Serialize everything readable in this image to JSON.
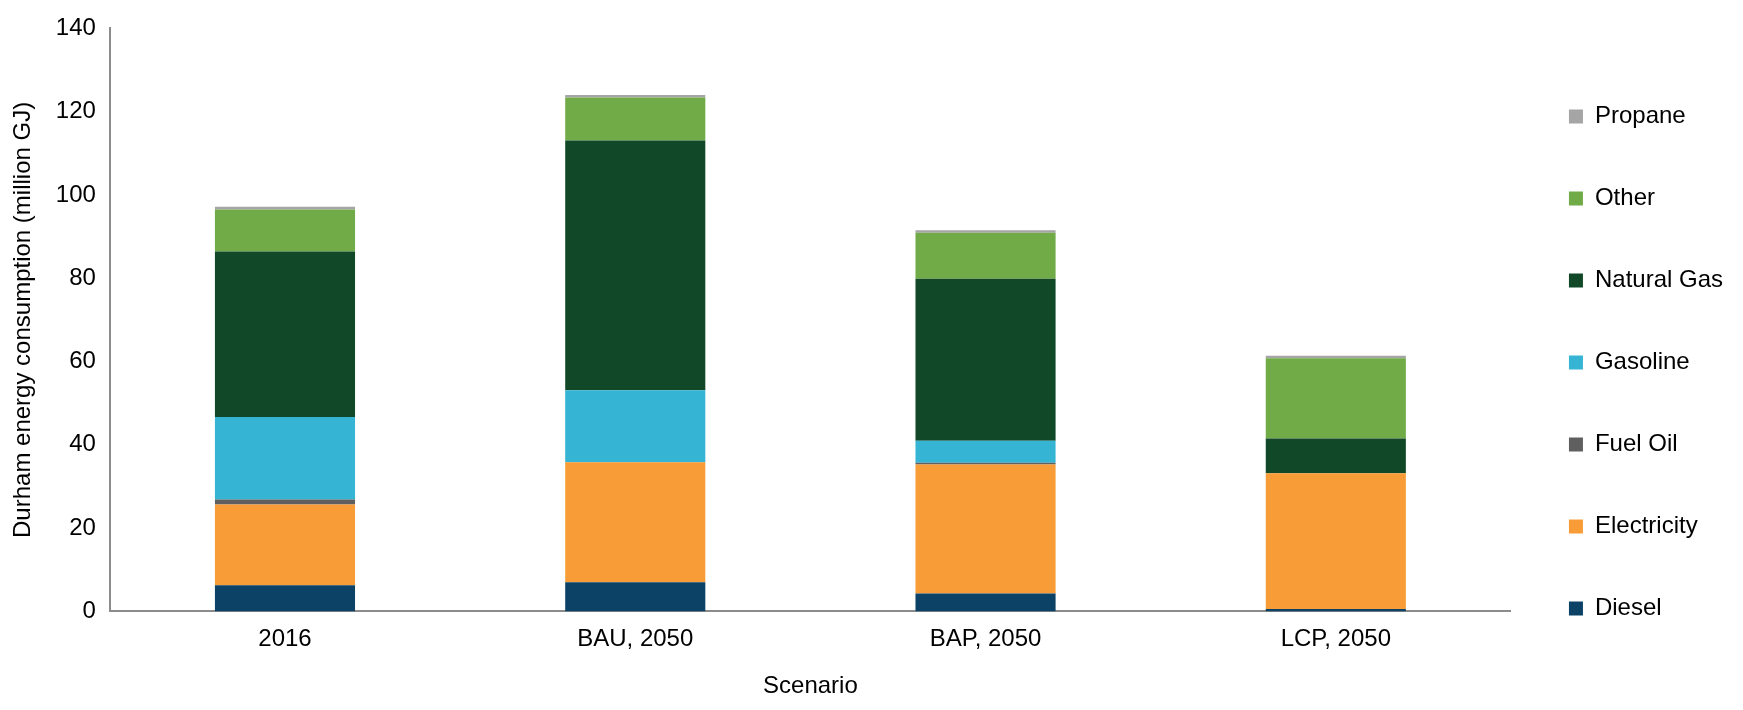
{
  "chart_data": {
    "type": "bar",
    "stacked": true,
    "xlabel": "Scenario",
    "ylabel": "Durham energy consumption (million GJ)",
    "categories": [
      "2016",
      "BAU, 2050",
      "BAP, 2050",
      "LCP, 2050"
    ],
    "series": [
      {
        "name": "Diesel",
        "color": "#0b4266",
        "values": [
          6.3,
          7.0,
          4.3,
          0.6
        ]
      },
      {
        "name": "Electricity",
        "color": "#f79c36",
        "values": [
          19.4,
          28.8,
          31.0,
          32.6
        ]
      },
      {
        "name": "Fuel Oil",
        "color": "#5f5f5f",
        "values": [
          1.2,
          0,
          0.4,
          0
        ]
      },
      {
        "name": "Gasoline",
        "color": "#35b4d4",
        "values": [
          19.8,
          17.3,
          5.3,
          0
        ]
      },
      {
        "name": "Natural Gas",
        "color": "#114928",
        "values": [
          39.7,
          60.0,
          38.9,
          8.3
        ]
      },
      {
        "name": "Other",
        "color": "#71ab48",
        "values": [
          10.1,
          10.3,
          11.0,
          19.3
        ]
      },
      {
        "name": "Propane",
        "color": "#a5a5a5",
        "values": [
          0.7,
          0.6,
          0.6,
          0.6
        ]
      }
    ],
    "ylim": [
      0,
      140
    ],
    "yticks": [
      0,
      20,
      40,
      60,
      80,
      100,
      120,
      140
    ],
    "grid": false,
    "legend": "right"
  }
}
